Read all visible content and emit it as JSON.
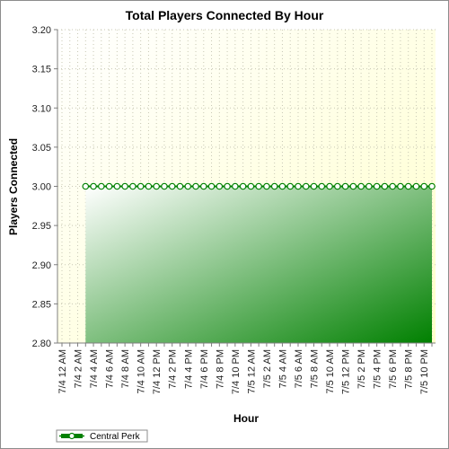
{
  "chart_data": {
    "type": "area",
    "title": "Total Players Connected By Hour",
    "xlabel": "Hour",
    "ylabel": "Players Connected",
    "ylim": [
      2.8,
      3.2
    ],
    "yticks": [
      "2.80",
      "2.85",
      "2.90",
      "2.95",
      "3.00",
      "3.05",
      "3.10",
      "3.15",
      "3.20"
    ],
    "xtick_labels": [
      "7/4 12 AM",
      "7/4 2 AM",
      "7/4 4 AM",
      "7/4 6 AM",
      "7/4 8 AM",
      "7/4 10 AM",
      "7/4 12 PM",
      "7/4 2 PM",
      "7/4 4 PM",
      "7/4 6 PM",
      "7/4 8 PM",
      "7/4 10 PM",
      "7/5 12 AM",
      "7/5 2 AM",
      "7/5 4 AM",
      "7/5 6 AM",
      "7/5 8 AM",
      "7/5 10 AM",
      "7/5 12 PM",
      "7/5 2 PM",
      "7/5 4 PM",
      "7/5 6 PM",
      "7/5 8 PM",
      "7/5 10 PM"
    ],
    "grid": true,
    "legend_position": "bottom-left",
    "series": [
      {
        "name": "Central Perk",
        "color": "#008000",
        "start_hour": 3,
        "end_hour": 47,
        "value": 3.0
      }
    ]
  }
}
